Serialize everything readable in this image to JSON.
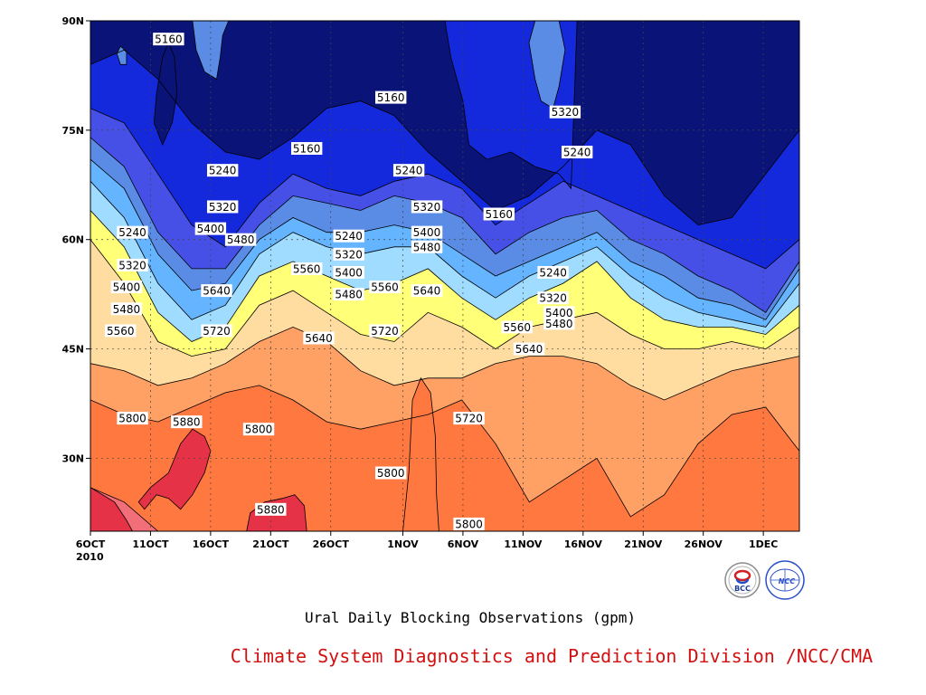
{
  "chart_data": {
    "type": "heatmap",
    "title": "Ural Daily Blocking Observations (gpm)",
    "credit": "Climate System Diagnostics and Prediction Division /NCC/CMA",
    "x_ticks": [
      "6OCT",
      "11OCT",
      "16OCT",
      "21OCT",
      "26OCT",
      "1NOV",
      "6NOV",
      "11NOV",
      "16NOV",
      "21NOV",
      "26NOV",
      "1DEC"
    ],
    "x_year": "2010",
    "x_range": [
      "2010-10-06",
      "2010-12-04"
    ],
    "y_ticks": [
      "30N",
      "45N",
      "60N",
      "75N",
      "90N"
    ],
    "y_range": [
      20,
      90
    ],
    "grid": true,
    "levels": [
      5160,
      5240,
      5320,
      5400,
      5480,
      5560,
      5640,
      5720,
      5800,
      5880
    ],
    "colors": [
      "#0a1478",
      "#1428dc",
      "#4650e6",
      "#5a8ce6",
      "#64b4ff",
      "#a0dcff",
      "#ffff78",
      "#ffdca0",
      "#ffa064",
      "#ff7840",
      "#f26e78",
      "#e63246"
    ],
    "series": [
      {
        "level": 5160,
        "lat": [
          84,
          86,
          82,
          76,
          72,
          71,
          74,
          78,
          79,
          77,
          72,
          68,
          64,
          66,
          70,
          75,
          73,
          66,
          62,
          63,
          69,
          75
        ]
      },
      {
        "level": 5240,
        "lat": [
          78,
          76,
          69,
          62,
          59,
          65,
          69,
          67,
          66,
          68,
          69,
          67,
          62,
          65,
          68,
          66,
          64,
          62,
          60,
          58,
          56,
          60
        ]
      },
      {
        "level": 5320,
        "lat": [
          74,
          70,
          61,
          56,
          56,
          62,
          66,
          65,
          64,
          66,
          65,
          63,
          58,
          61,
          63,
          64,
          60,
          58,
          55,
          53,
          50,
          57
        ]
      },
      {
        "level": 5400,
        "lat": [
          71,
          67,
          58,
          53,
          54,
          60,
          63,
          61,
          61,
          62,
          61,
          58,
          55,
          57,
          59,
          61,
          57,
          55,
          52,
          51,
          49,
          56
        ]
      },
      {
        "level": 5480,
        "lat": [
          68,
          63,
          54,
          49,
          51,
          58,
          61,
          59,
          58,
          59,
          59,
          55,
          52,
          55,
          57,
          59,
          55,
          52,
          50,
          49,
          48,
          54
        ]
      },
      {
        "level": 5560,
        "lat": [
          64,
          59,
          50,
          46,
          48,
          55,
          57,
          55,
          53,
          54,
          56,
          52,
          49,
          52,
          54,
          57,
          52,
          49,
          48,
          48,
          47,
          51
        ]
      },
      {
        "level": 5640,
        "lat": [
          60,
          54,
          46,
          44,
          45,
          51,
          53,
          50,
          47,
          46,
          50,
          48,
          45,
          48,
          49,
          50,
          47,
          45,
          45,
          46,
          45,
          48
        ]
      },
      {
        "level": 5720,
        "lat": [
          43,
          42,
          40,
          41,
          43,
          46,
          48,
          46,
          42,
          40,
          41,
          41,
          43,
          44,
          44,
          43,
          40,
          38,
          40,
          42,
          43,
          44
        ]
      },
      {
        "level": 5800,
        "lat": [
          38,
          36,
          35,
          37,
          39,
          40,
          38,
          35,
          34,
          35,
          36,
          38,
          32,
          24,
          27,
          30,
          22,
          25,
          32,
          36,
          37,
          31
        ]
      },
      {
        "level": 5880,
        "lat": [
          26,
          24,
          20,
          20,
          20,
          20,
          20,
          20,
          20,
          20,
          20,
          20,
          20,
          20,
          20,
          20,
          20,
          20,
          20,
          20,
          20,
          20
        ]
      }
    ],
    "contour_labels": [
      {
        "text": "5160",
        "x": 6.5,
        "y": 87.5
      },
      {
        "text": "5160",
        "x": 18,
        "y": 72.5
      },
      {
        "text": "5160",
        "x": 25,
        "y": 79.5
      },
      {
        "text": "5160",
        "x": 34,
        "y": 63.5
      },
      {
        "text": "5320",
        "x": 39.5,
        "y": 77.5
      },
      {
        "text": "5240",
        "x": 40.5,
        "y": 72
      },
      {
        "text": "5240",
        "x": 11,
        "y": 69.5
      },
      {
        "text": "5240",
        "x": 26.5,
        "y": 69.5
      },
      {
        "text": "5240",
        "x": 3.5,
        "y": 61
      },
      {
        "text": "5240",
        "x": 21.5,
        "y": 60.5
      },
      {
        "text": "5240",
        "x": 38.5,
        "y": 55.5
      },
      {
        "text": "5320",
        "x": 11,
        "y": 64.5
      },
      {
        "text": "5320",
        "x": 28,
        "y": 64.5
      },
      {
        "text": "5320",
        "x": 21.5,
        "y": 58
      },
      {
        "text": "5320",
        "x": 3.5,
        "y": 56.5
      },
      {
        "text": "5320",
        "x": 38.5,
        "y": 52
      },
      {
        "text": "5400",
        "x": 10,
        "y": 61.5
      },
      {
        "text": "5400",
        "x": 28,
        "y": 61
      },
      {
        "text": "5400",
        "x": 21.5,
        "y": 55.5
      },
      {
        "text": "5400",
        "x": 3,
        "y": 53.5
      },
      {
        "text": "5400",
        "x": 39,
        "y": 50
      },
      {
        "text": "5480",
        "x": 12.5,
        "y": 60
      },
      {
        "text": "5480",
        "x": 28,
        "y": 59
      },
      {
        "text": "5480",
        "x": 21.5,
        "y": 52.5
      },
      {
        "text": "5480",
        "x": 3,
        "y": 50.5
      },
      {
        "text": "5480",
        "x": 39,
        "y": 48.5
      },
      {
        "text": "5560",
        "x": 18,
        "y": 56
      },
      {
        "text": "5560",
        "x": 24.5,
        "y": 53.5
      },
      {
        "text": "5560",
        "x": 2.5,
        "y": 47.5
      },
      {
        "text": "5560",
        "x": 35.5,
        "y": 48
      },
      {
        "text": "5640",
        "x": 10.5,
        "y": 53
      },
      {
        "text": "5640",
        "x": 28,
        "y": 53
      },
      {
        "text": "5640",
        "x": 19,
        "y": 46.5
      },
      {
        "text": "5640",
        "x": 36.5,
        "y": 45
      },
      {
        "text": "5720",
        "x": 10.5,
        "y": 47.5
      },
      {
        "text": "5720",
        "x": 24.5,
        "y": 47.5
      },
      {
        "text": "5720",
        "x": 31.5,
        "y": 35.5
      },
      {
        "text": "5800",
        "x": 3.5,
        "y": 35.5
      },
      {
        "text": "5800",
        "x": 14,
        "y": 34
      },
      {
        "text": "5800",
        "x": 25,
        "y": 28
      },
      {
        "text": "5800",
        "x": 31.5,
        "y": 21
      },
      {
        "text": "5880",
        "x": 8,
        "y": 35
      },
      {
        "text": "5880",
        "x": 15,
        "y": 23
      }
    ],
    "closed_regions": [
      {
        "color": "#e63246",
        "points": [
          [
            0,
            20
          ],
          [
            0,
            26
          ],
          [
            2,
            24
          ],
          [
            3,
            21.5
          ],
          [
            3.5,
            20
          ]
        ]
      },
      {
        "color": "#e63246",
        "points": [
          [
            4,
            24
          ],
          [
            5,
            26
          ],
          [
            6.5,
            28
          ],
          [
            7.5,
            32
          ],
          [
            8.5,
            34
          ],
          [
            9.5,
            33
          ],
          [
            10,
            31
          ],
          [
            9.5,
            28
          ],
          [
            8.5,
            25
          ],
          [
            7.5,
            23
          ],
          [
            6.5,
            24.5
          ],
          [
            5.5,
            25
          ],
          [
            4.5,
            23
          ]
        ]
      },
      {
        "color": "#e63246",
        "points": [
          [
            13,
            20
          ],
          [
            13.3,
            22.5
          ],
          [
            14.5,
            24
          ],
          [
            16,
            24.5
          ],
          [
            17,
            25
          ],
          [
            17.8,
            23.5
          ],
          [
            18,
            20
          ]
        ]
      },
      {
        "color": "#ff7840",
        "points": [
          [
            26,
            20
          ],
          [
            26.5,
            28
          ],
          [
            26.8,
            38
          ],
          [
            27.5,
            41
          ],
          [
            28.3,
            39
          ],
          [
            28.7,
            33
          ],
          [
            28.8,
            25
          ],
          [
            29,
            20
          ]
        ]
      },
      {
        "color": "#1428dc",
        "points": [
          [
            29.5,
            90
          ],
          [
            30,
            85
          ],
          [
            31,
            79
          ],
          [
            31.5,
            73
          ],
          [
            33,
            71
          ],
          [
            35,
            72
          ],
          [
            37,
            70
          ],
          [
            39,
            69
          ],
          [
            40,
            67
          ],
          [
            40.5,
            90
          ]
        ]
      },
      {
        "color": "#5a8ce6",
        "points": [
          [
            37,
            90
          ],
          [
            36.5,
            87
          ],
          [
            37,
            82
          ],
          [
            37.5,
            79
          ],
          [
            38.5,
            78
          ],
          [
            39,
            81
          ],
          [
            39.5,
            86
          ],
          [
            39,
            90
          ]
        ]
      },
      {
        "color": "#5a8ce6",
        "points": [
          [
            8.5,
            90
          ],
          [
            8.8,
            86
          ],
          [
            9.5,
            83
          ],
          [
            10.5,
            82
          ],
          [
            10.8,
            85
          ],
          [
            11,
            88
          ],
          [
            11.5,
            90
          ]
        ]
      },
      {
        "color": "#0a1478",
        "points": [
          [
            5.3,
            76
          ],
          [
            5.5,
            80
          ],
          [
            6,
            85
          ],
          [
            6.5,
            87
          ],
          [
            7,
            85
          ],
          [
            7.2,
            80
          ],
          [
            6.8,
            76
          ],
          [
            6,
            73
          ]
        ]
      },
      {
        "color": "#5a8ce6",
        "points": [
          [
            2.5,
            84
          ],
          [
            2.2,
            85.5
          ],
          [
            2.5,
            86.5
          ],
          [
            3,
            85.8
          ],
          [
            3,
            84
          ]
        ]
      }
    ]
  },
  "logos": {
    "bcc": "BCC",
    "ncc": "NCC"
  }
}
